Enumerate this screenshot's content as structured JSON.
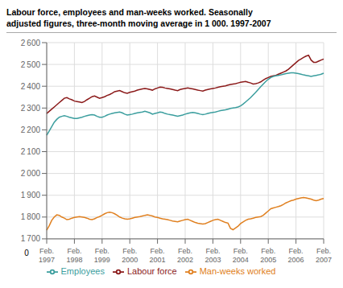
{
  "chart_data": {
    "type": "line",
    "title": "Labour force, employees and man-weeks worked. Seasonally\nadjusted figures, three-month moving average in 1 000. 1997-2007",
    "categories": [
      "Feb.\n1997",
      null,
      null,
      null,
      null,
      null,
      null,
      null,
      null,
      null,
      null,
      "Feb.\n1998",
      null,
      null,
      null,
      null,
      null,
      null,
      null,
      null,
      null,
      null,
      "Feb.\n1999",
      null,
      null,
      null,
      null,
      null,
      null,
      null,
      null,
      null,
      null,
      "Feb.\n2000",
      null,
      null,
      null,
      null,
      null,
      null,
      null,
      null,
      null,
      null,
      "Feb.\n2001",
      null,
      null,
      null,
      null,
      null,
      null,
      null,
      null,
      null,
      null,
      "Feb.\n2002",
      null,
      null,
      null,
      null,
      null,
      null,
      null,
      null,
      null,
      null,
      "Feb.\n2003",
      null,
      null,
      null,
      null,
      null,
      null,
      null,
      null,
      null,
      null,
      "Feb.\n2004",
      null,
      null,
      null,
      null,
      null,
      null,
      null,
      null,
      null,
      null,
      "Feb.\n2005",
      null,
      null,
      null,
      null,
      null,
      null,
      null,
      null,
      null,
      null,
      "Feb.\n2006",
      null,
      null,
      null,
      null,
      null,
      null,
      null,
      null,
      null,
      null,
      "Feb.\n2007"
    ],
    "series": [
      {
        "name": "Labour force",
        "color": "#8B1A1A",
        "values": [
          2275,
          2285,
          2295,
          2305,
          2315,
          2325,
          2335,
          2345,
          2348,
          2342,
          2338,
          2332,
          2330,
          2328,
          2325,
          2330,
          2338,
          2345,
          2352,
          2355,
          2350,
          2345,
          2348,
          2352,
          2358,
          2362,
          2368,
          2375,
          2378,
          2380,
          2375,
          2370,
          2368,
          2372,
          2375,
          2378,
          2382,
          2385,
          2388,
          2390,
          2388,
          2385,
          2382,
          2388,
          2392,
          2396,
          2395,
          2392,
          2390,
          2388,
          2385,
          2382,
          2380,
          2385,
          2388,
          2390,
          2392,
          2390,
          2388,
          2385,
          2382,
          2380,
          2378,
          2382,
          2385,
          2388,
          2390,
          2392,
          2395,
          2398,
          2400,
          2402,
          2405,
          2408,
          2410,
          2412,
          2415,
          2418,
          2420,
          2422,
          2418,
          2415,
          2410,
          2412,
          2415,
          2420,
          2428,
          2435,
          2440,
          2445,
          2448,
          2450,
          2455,
          2460,
          2465,
          2470,
          2478,
          2488,
          2498,
          2508,
          2518,
          2525,
          2532,
          2538,
          2542,
          2520,
          2510,
          2510,
          2515,
          2520,
          2525
        ]
      },
      {
        "name": "Employees",
        "color": "#3B9E9E",
        "values": [
          2175,
          2195,
          2215,
          2235,
          2248,
          2258,
          2262,
          2265,
          2262,
          2258,
          2255,
          2252,
          2252,
          2255,
          2258,
          2262,
          2265,
          2268,
          2270,
          2268,
          2262,
          2258,
          2258,
          2262,
          2268,
          2272,
          2275,
          2278,
          2280,
          2282,
          2278,
          2272,
          2268,
          2270,
          2272,
          2275,
          2278,
          2280,
          2282,
          2285,
          2282,
          2278,
          2272,
          2275,
          2278,
          2282,
          2280,
          2275,
          2272,
          2270,
          2268,
          2265,
          2262,
          2265,
          2268,
          2272,
          2275,
          2278,
          2280,
          2278,
          2275,
          2272,
          2270,
          2272,
          2275,
          2278,
          2280,
          2282,
          2285,
          2288,
          2290,
          2292,
          2295,
          2298,
          2300,
          2302,
          2305,
          2310,
          2318,
          2328,
          2338,
          2348,
          2360,
          2372,
          2385,
          2398,
          2410,
          2422,
          2432,
          2440,
          2445,
          2448,
          2450,
          2452,
          2455,
          2458,
          2460,
          2462,
          2462,
          2460,
          2458,
          2455,
          2452,
          2450,
          2448,
          2445,
          2448,
          2450,
          2452,
          2455,
          2460
        ]
      },
      {
        "name": "Man-weeks worked",
        "color": "#E08020",
        "values": [
          1740,
          1760,
          1785,
          1800,
          1810,
          1808,
          1800,
          1795,
          1788,
          1790,
          1795,
          1798,
          1800,
          1802,
          1800,
          1798,
          1795,
          1790,
          1788,
          1792,
          1798,
          1802,
          1808,
          1815,
          1820,
          1822,
          1820,
          1815,
          1808,
          1800,
          1795,
          1792,
          1790,
          1792,
          1795,
          1798,
          1800,
          1802,
          1805,
          1808,
          1810,
          1808,
          1805,
          1800,
          1798,
          1795,
          1792,
          1790,
          1788,
          1785,
          1782,
          1780,
          1778,
          1782,
          1785,
          1788,
          1790,
          1785,
          1780,
          1775,
          1772,
          1770,
          1768,
          1770,
          1775,
          1780,
          1785,
          1788,
          1790,
          1785,
          1780,
          1775,
          1772,
          1748,
          1742,
          1750,
          1758,
          1770,
          1778,
          1785,
          1790,
          1792,
          1795,
          1798,
          1800,
          1802,
          1808,
          1818,
          1828,
          1838,
          1842,
          1845,
          1848,
          1852,
          1858,
          1865,
          1870,
          1875,
          1878,
          1882,
          1885,
          1888,
          1890,
          1888,
          1885,
          1882,
          1878,
          1875,
          1878,
          1882,
          1885
        ]
      }
    ],
    "ylim": [
      1700,
      2600
    ],
    "yticks": [
      {
        "value": 1700,
        "label": "1 700"
      },
      {
        "value": 1800,
        "label": "1 800"
      },
      {
        "value": 1900,
        "label": "1 900"
      },
      {
        "value": 2000,
        "label": "2 000"
      },
      {
        "value": 2100,
        "label": "2 100"
      },
      {
        "value": 2200,
        "label": "2 200"
      },
      {
        "value": 2300,
        "label": "2 300"
      },
      {
        "value": 2400,
        "label": "2 400"
      },
      {
        "value": 2500,
        "label": "2 500"
      },
      {
        "value": 2600,
        "label": "2 600"
      }
    ],
    "annotations": [
      "0"
    ],
    "grid": true,
    "legend": "bottom"
  }
}
